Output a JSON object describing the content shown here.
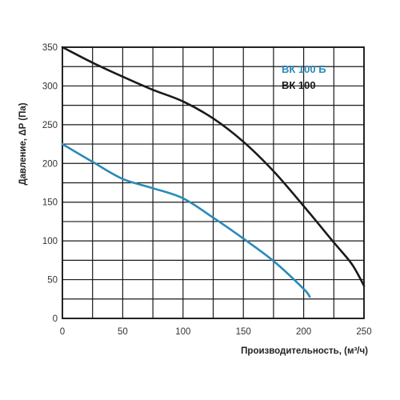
{
  "chart_data": {
    "type": "line",
    "xlabel": "Производительность, (м³/ч)",
    "ylabel": "Давление, ΔP (Па)",
    "xlim": [
      0,
      250
    ],
    "ylim": [
      0,
      350
    ],
    "x_ticks": [
      0,
      50,
      100,
      150,
      200,
      250
    ],
    "y_ticks": [
      0,
      50,
      100,
      150,
      200,
      250,
      300,
      350
    ],
    "grid": "on, both axes, 25 m³/h and 25 Pa steps",
    "legend_placement": "top-right",
    "series": [
      {
        "name": "ВК 100 Б",
        "color": "#2a8ab8",
        "points": [
          [
            0,
            225
          ],
          [
            25,
            202
          ],
          [
            50,
            180
          ],
          [
            75,
            168
          ],
          [
            100,
            155
          ],
          [
            125,
            130
          ],
          [
            150,
            103
          ],
          [
            175,
            74
          ],
          [
            200,
            38
          ],
          [
            205,
            28
          ]
        ]
      },
      {
        "name": "ВК 100",
        "color": "#1a1a1a",
        "points": [
          [
            0,
            350
          ],
          [
            25,
            330
          ],
          [
            50,
            312
          ],
          [
            75,
            295
          ],
          [
            100,
            280
          ],
          [
            125,
            258
          ],
          [
            150,
            228
          ],
          [
            175,
            190
          ],
          [
            200,
            145
          ],
          [
            225,
            98
          ],
          [
            240,
            70
          ],
          [
            250,
            42
          ]
        ]
      }
    ]
  }
}
